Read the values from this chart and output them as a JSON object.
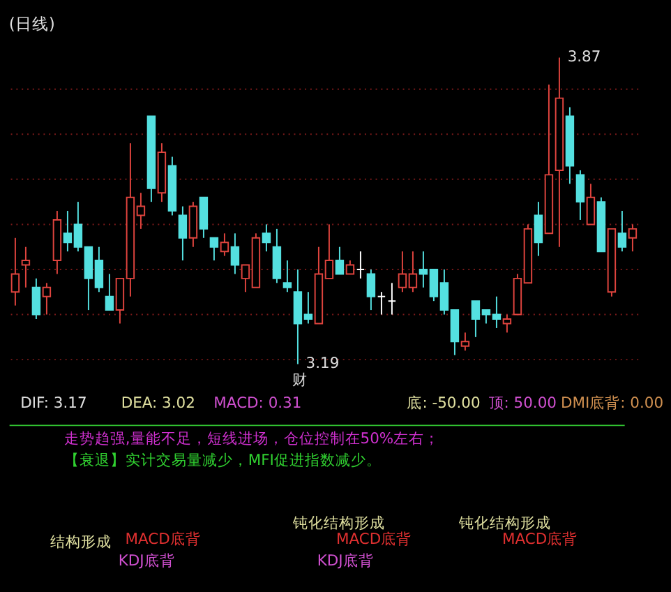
{
  "chart_data": [
    {
      "type": "candlestick",
      "title": "(日线)",
      "categories": [
        null,
        null,
        null,
        null,
        null,
        null,
        null,
        null,
        null,
        null,
        null,
        null,
        null,
        null,
        null,
        null,
        null,
        null,
        null,
        null,
        null,
        null,
        null,
        null,
        null,
        null,
        null,
        null,
        null,
        null,
        null,
        null,
        null,
        null,
        null,
        null,
        null,
        null,
        null,
        null,
        null,
        null,
        null,
        null,
        null,
        null,
        null,
        null,
        null,
        null,
        null,
        null,
        null,
        null,
        null,
        null,
        null,
        null,
        null,
        null
      ],
      "ohlc": [
        [
          3.35,
          3.47,
          3.32,
          3.39
        ],
        [
          3.41,
          3.45,
          3.36,
          3.42
        ],
        [
          3.36,
          3.38,
          3.29,
          3.3
        ],
        [
          3.34,
          3.37,
          3.3,
          3.36
        ],
        [
          3.42,
          3.53,
          3.39,
          3.51
        ],
        [
          3.48,
          3.53,
          3.44,
          3.46
        ],
        [
          3.5,
          3.55,
          3.44,
          3.45
        ],
        [
          3.45,
          3.45,
          3.31,
          3.38
        ],
        [
          3.42,
          3.45,
          3.35,
          3.36
        ],
        [
          3.34,
          3.39,
          3.31,
          3.31
        ],
        [
          3.31,
          3.38,
          3.28,
          3.38
        ],
        [
          3.38,
          3.68,
          3.34,
          3.56
        ],
        [
          3.52,
          3.57,
          3.49,
          3.54
        ],
        [
          3.74,
          3.74,
          3.55,
          3.58
        ],
        [
          3.57,
          3.68,
          3.55,
          3.66
        ],
        [
          3.63,
          3.65,
          3.52,
          3.53
        ],
        [
          3.52,
          3.54,
          3.42,
          3.47
        ],
        [
          3.47,
          3.55,
          3.45,
          3.54
        ],
        [
          3.56,
          3.56,
          3.47,
          3.49
        ],
        [
          3.47,
          3.47,
          3.42,
          3.45
        ],
        [
          3.44,
          3.48,
          3.43,
          3.46
        ],
        [
          3.45,
          3.48,
          3.39,
          3.41
        ],
        [
          3.38,
          3.41,
          3.35,
          3.41
        ],
        [
          3.36,
          3.48,
          3.36,
          3.47
        ],
        [
          3.48,
          3.5,
          3.44,
          3.46
        ],
        [
          3.45,
          3.49,
          3.37,
          3.38
        ],
        [
          3.37,
          3.42,
          3.35,
          3.36
        ],
        [
          3.35,
          3.4,
          3.19,
          3.28
        ],
        [
          3.3,
          3.35,
          3.28,
          3.29
        ],
        [
          3.28,
          3.45,
          3.28,
          3.39
        ],
        [
          3.38,
          3.5,
          3.38,
          3.42
        ],
        [
          3.42,
          3.45,
          3.39,
          3.39
        ],
        [
          3.39,
          3.42,
          3.39,
          3.41
        ],
        [
          3.4,
          3.44,
          3.38,
          3.4
        ],
        [
          3.39,
          3.4,
          3.31,
          3.34
        ],
        [
          3.34,
          3.35,
          3.3,
          3.34
        ],
        [
          3.33,
          3.37,
          3.3,
          3.33
        ],
        [
          3.36,
          3.44,
          3.35,
          3.39
        ],
        [
          3.36,
          3.44,
          3.35,
          3.39
        ],
        [
          3.4,
          3.44,
          3.36,
          3.39
        ],
        [
          3.4,
          3.4,
          3.33,
          3.34
        ],
        [
          3.37,
          3.4,
          3.3,
          3.31
        ],
        [
          3.31,
          3.31,
          3.21,
          3.24
        ],
        [
          3.23,
          3.26,
          3.22,
          3.24
        ],
        [
          3.33,
          3.33,
          3.25,
          3.29
        ],
        [
          3.31,
          3.31,
          3.28,
          3.3
        ],
        [
          3.3,
          3.34,
          3.27,
          3.29
        ],
        [
          3.28,
          3.3,
          3.26,
          3.29
        ],
        [
          3.3,
          3.39,
          3.3,
          3.38
        ],
        [
          3.37,
          3.5,
          3.37,
          3.49
        ],
        [
          3.52,
          3.55,
          3.43,
          3.46
        ],
        [
          3.48,
          3.81,
          3.48,
          3.61
        ],
        [
          3.62,
          3.87,
          3.45,
          3.78
        ],
        [
          3.74,
          3.76,
          3.59,
          3.63
        ],
        [
          3.61,
          3.62,
          3.51,
          3.55
        ],
        [
          3.5,
          3.59,
          3.5,
          3.56
        ],
        [
          3.55,
          3.56,
          3.44,
          3.44
        ],
        [
          3.35,
          3.49,
          3.34,
          3.49
        ],
        [
          3.48,
          3.53,
          3.44,
          3.45
        ],
        [
          3.47,
          3.5,
          3.44,
          3.49
        ]
      ],
      "colors": [
        "#e0443e",
        "#e0443e",
        "#54e0e0",
        "#e0443e",
        "#e0443e",
        "#54e0e0",
        "#54e0e0",
        "#54e0e0",
        "#54e0e0",
        "#54e0e0",
        "#e0443e",
        "#e0443e",
        "#e0443e",
        "#54e0e0",
        "#e0443e",
        "#54e0e0",
        "#54e0e0",
        "#e0443e",
        "#54e0e0",
        "#54e0e0",
        "#e0443e",
        "#54e0e0",
        "#e0443e",
        "#e0443e",
        "#54e0e0",
        "#54e0e0",
        "#54e0e0",
        "#54e0e0",
        "#54e0e0",
        "#e0443e",
        "#e0443e",
        "#54e0e0",
        "#e0443e",
        "#ffffff",
        "#54e0e0",
        "#ffffff",
        "#ffffff",
        "#e0443e",
        "#e0443e",
        "#54e0e0",
        "#54e0e0",
        "#54e0e0",
        "#54e0e0",
        "#e0443e",
        "#54e0e0",
        "#54e0e0",
        "#54e0e0",
        "#e0443e",
        "#e0443e",
        "#e0443e",
        "#54e0e0",
        "#e0443e",
        "#e0443e",
        "#54e0e0",
        "#54e0e0",
        "#e0443e",
        "#54e0e0",
        "#e0443e",
        "#54e0e0",
        "#e0443e"
      ],
      "grid": "y",
      "yticks": [
        {
          "value": 3.2,
          "label": null
        },
        {
          "value": 3.3,
          "label": null
        },
        {
          "value": 3.4,
          "label": null
        },
        {
          "value": 3.5,
          "label": null
        },
        {
          "value": 3.6,
          "label": null
        },
        {
          "value": 3.7,
          "label": null
        },
        {
          "value": 3.8,
          "label": null
        }
      ],
      "annotations": [
        "3.87",
        "3.19",
        "财"
      ]
    },
    {
      "type": "other",
      "annotations": [
        "DIF: 3.17",
        "DEA: 3.02",
        "MACD: 0.31",
        "底: -50.00",
        "顶: 50.00",
        "DMI底背: 0.00",
        "走势趋强,量能不足，短线进场，仓位控制在50%左右；",
        "【衰退】实计交易量减少，MFI促进指数减少。",
        "结构形成",
        "MACD底背",
        "KDJ底背",
        "钝化结构形成",
        "MACD底背",
        "KDJ底背",
        "钝化结构形成",
        "MACD底背"
      ]
    }
  ]
}
